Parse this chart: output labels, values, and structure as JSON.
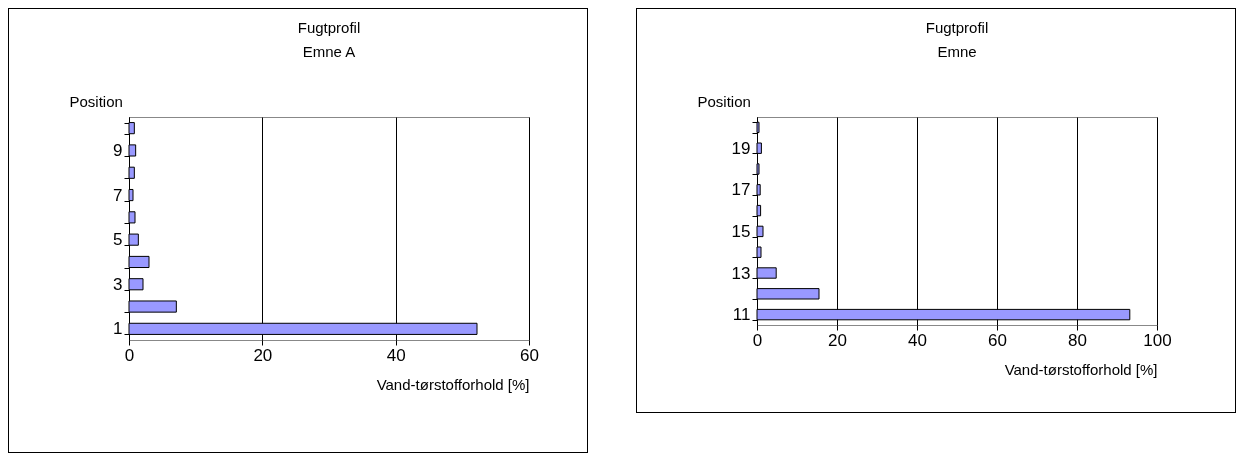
{
  "chart_data": [
    {
      "type": "bar",
      "orientation": "horizontal",
      "title": "Fugtprofil\nEmne A",
      "ylabel": "Position",
      "xlabel": "Vand-tørstofforhold [%]",
      "categories": [
        null,
        "9",
        null,
        "7",
        null,
        "5",
        null,
        "3",
        null,
        "1"
      ],
      "series": [
        {
          "color": "#9999ff",
          "values": [
            0.8,
            1.0,
            0.8,
            0.6,
            0.9,
            1.4,
            3.0,
            2.1,
            7.1,
            52.2
          ]
        }
      ],
      "xlim": [
        0,
        60
      ],
      "xticks": [
        0,
        20,
        40,
        60
      ],
      "grid": "x"
    },
    {
      "type": "bar",
      "orientation": "horizontal",
      "title": "Fugtprofil\nEmne",
      "ylabel": "Position",
      "xlabel": "Vand-tørstofforhold [%]",
      "categories": [
        null,
        "19",
        null,
        "17",
        null,
        "15",
        null,
        "13",
        null,
        "11"
      ],
      "series": [
        {
          "color": "#9999ff",
          "values": [
            0.5,
            1.1,
            0.5,
            0.8,
            0.9,
            1.5,
            1.0,
            4.8,
            15.5,
            93.2
          ]
        }
      ],
      "xlim": [
        0,
        100
      ],
      "xticks": [
        0,
        20,
        40,
        60,
        80,
        100
      ],
      "grid": "x"
    }
  ]
}
